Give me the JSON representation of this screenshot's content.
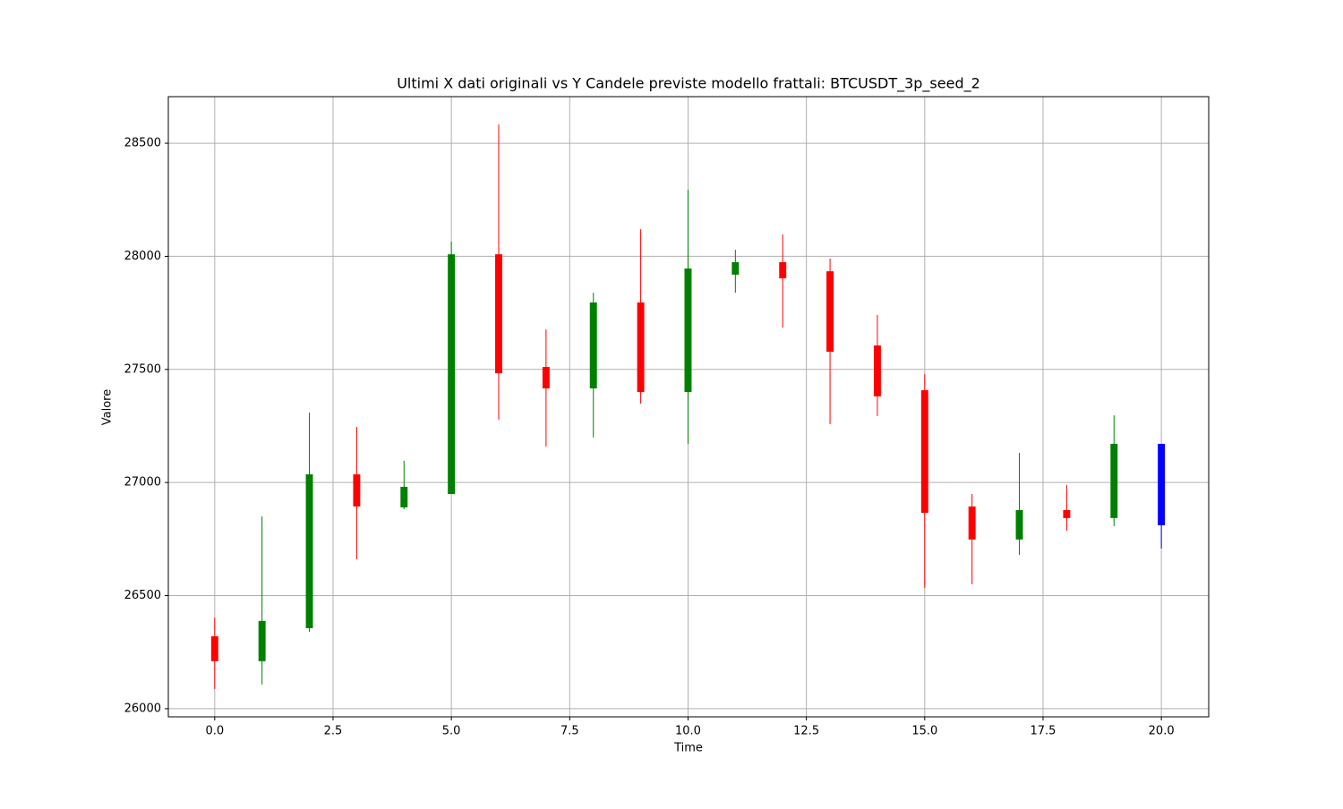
{
  "chart_data": {
    "type": "candlestick",
    "title": "Ultimi X dati originali vs Y Candele previste modello frattali: BTCUSDT_3p_seed_2",
    "xlabel": "Time",
    "ylabel": "Valore",
    "x": [
      0,
      1,
      2,
      3,
      4,
      5,
      6,
      7,
      8,
      9,
      10,
      11,
      12,
      13,
      14,
      15,
      16,
      17,
      18,
      19,
      20
    ],
    "open": [
      26320,
      26210,
      26356,
      27036,
      26890,
      26949,
      28009,
      27511,
      27416,
      27796,
      27400,
      27919,
      27974,
      27934,
      27606,
      27408,
      26894,
      26748,
      26878,
      26843,
      27171
    ],
    "high": [
      26403,
      26850,
      27309,
      27246,
      27096,
      28065,
      28583,
      27677,
      27839,
      28120,
      28294,
      28029,
      28097,
      27990,
      27741,
      27479,
      26949,
      27131,
      26989,
      27297,
      27171
    ],
    "low": [
      26087,
      26107,
      26340,
      26661,
      26882,
      26949,
      27278,
      27159,
      27199,
      27349,
      27171,
      27839,
      27685,
      27258,
      27294,
      26534,
      26550,
      26680,
      26787,
      26807,
      26708
    ],
    "close": [
      26210,
      26388,
      27036,
      26894,
      26981,
      28009,
      27483,
      27416,
      27796,
      27400,
      27946,
      27974,
      27903,
      27578,
      27381,
      26866,
      26748,
      26878,
      26843,
      27171,
      26811
    ],
    "colors": [
      "#ff0000",
      "#008000",
      "#008000",
      "#ff0000",
      "#008000",
      "#008000",
      "#ff0000",
      "#ff0000",
      "#008000",
      "#ff0000",
      "#008000",
      "#008000",
      "#ff0000",
      "#ff0000",
      "#ff0000",
      "#ff0000",
      "#ff0000",
      "#008000",
      "#ff0000",
      "#008000",
      "#0000ff"
    ],
    "xlim": [
      -0.98,
      21.0
    ],
    "ylim": [
      25964,
      28706
    ],
    "xticks": [
      {
        "value": 0,
        "label": "0.0"
      },
      {
        "value": 2.5,
        "label": "2.5"
      },
      {
        "value": 5,
        "label": "5.0"
      },
      {
        "value": 7.5,
        "label": "7.5"
      },
      {
        "value": 10,
        "label": "10.0"
      },
      {
        "value": 12.5,
        "label": "12.5"
      },
      {
        "value": 15,
        "label": "15.0"
      },
      {
        "value": 17.5,
        "label": "17.5"
      },
      {
        "value": 20,
        "label": "20.0"
      }
    ],
    "yticks": [
      26000,
      26500,
      27000,
      27500,
      28000,
      28500
    ],
    "grid": true
  }
}
